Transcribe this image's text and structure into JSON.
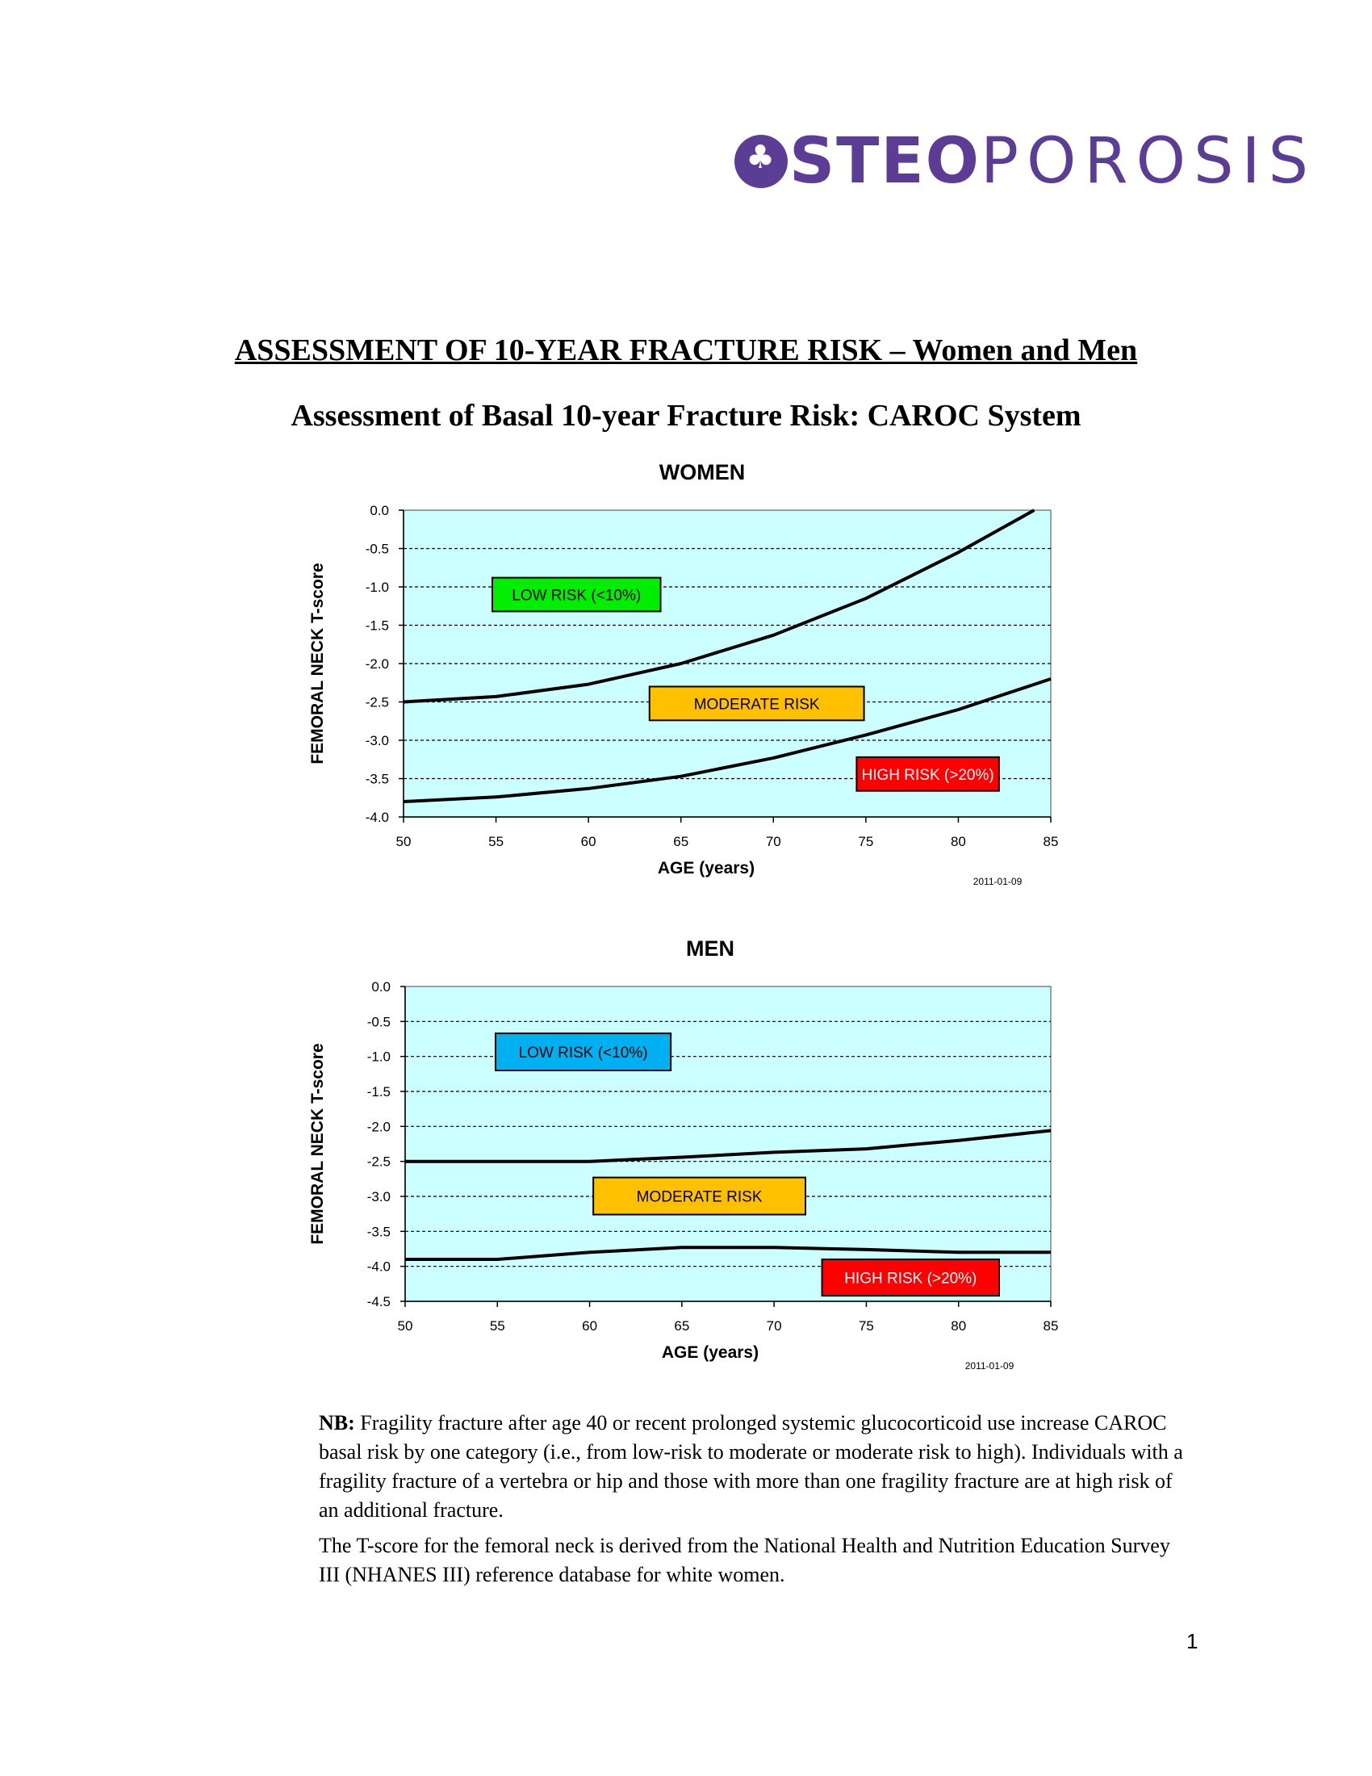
{
  "logo": {
    "text_bold": "STE",
    "text_mid": "O",
    "text_light": "POROSIS",
    "color": "#5b3d96"
  },
  "header": {
    "title": "ASSESSMENT OF 10-YEAR FRACTURE RISK – Women and Men",
    "subtitle": "Assessment of Basal 10-year Fracture Risk: CAROC System"
  },
  "chart_data": [
    {
      "type": "line",
      "title": "WOMEN",
      "xlabel": "AGE (years)",
      "ylabel": "FEMORAL NECK T-score",
      "xlim": [
        50,
        85
      ],
      "ylim": [
        -4.0,
        0.0
      ],
      "xticks": [
        50,
        55,
        60,
        65,
        70,
        75,
        80,
        85
      ],
      "yticks": [
        0.0,
        -0.5,
        -1.0,
        -1.5,
        -2.0,
        -2.5,
        -3.0,
        -3.5,
        -4.0
      ],
      "grid": true,
      "plot_bg": "#ccffff",
      "series": [
        {
          "x": [
            50,
            55,
            60,
            65,
            70,
            75,
            80,
            84.1
          ],
          "y": [
            -2.5,
            -2.43,
            -2.27,
            -2.0,
            -1.63,
            -1.15,
            -0.55,
            0.0
          ]
        },
        {
          "x": [
            50,
            55,
            60,
            65,
            70,
            75,
            80,
            85
          ],
          "y": [
            -3.8,
            -3.74,
            -3.63,
            -3.47,
            -3.23,
            -2.93,
            -2.6,
            -2.2
          ]
        }
      ],
      "annotations": [
        {
          "text": "LOW RISK (<10%)",
          "color": "#00ee00",
          "x": [
            54.8,
            63.9
          ],
          "y": [
            -0.88,
            -1.32
          ]
        },
        {
          "text": "MODERATE RISK",
          "color": "#ffc000",
          "x": [
            63.3,
            74.9
          ],
          "y": [
            -2.3,
            -2.74
          ]
        },
        {
          "text": "HIGH RISK (>20%)",
          "color": "#ff0000",
          "x": [
            74.5,
            82.2
          ],
          "y": [
            -3.22,
            -3.66
          ]
        }
      ],
      "date": "2011-01-09"
    },
    {
      "type": "line",
      "title": "MEN",
      "xlabel": "AGE (years)",
      "ylabel": "FEMORAL NECK T-score",
      "xlim": [
        50,
        85
      ],
      "ylim": [
        -4.5,
        0.0
      ],
      "xticks": [
        50,
        55,
        60,
        65,
        70,
        75,
        80,
        85
      ],
      "yticks": [
        0.0,
        -0.5,
        -1.0,
        -1.5,
        -2.0,
        -2.5,
        -3.0,
        -3.5,
        -4.0,
        -4.5
      ],
      "grid": true,
      "plot_bg": "#ccffff",
      "series": [
        {
          "x": [
            50,
            55,
            60,
            65,
            70,
            75,
            80,
            85
          ],
          "y": [
            -2.5,
            -2.5,
            -2.5,
            -2.44,
            -2.37,
            -2.32,
            -2.2,
            -2.06
          ]
        },
        {
          "x": [
            50,
            55,
            60,
            65,
            70,
            75,
            80,
            85
          ],
          "y": [
            -3.9,
            -3.9,
            -3.8,
            -3.73,
            -3.73,
            -3.76,
            -3.8,
            -3.8
          ]
        }
      ],
      "annotations": [
        {
          "text": "LOW RISK (<10%)",
          "color": "#00b0f0",
          "x": [
            54.9,
            64.4
          ],
          "y": [
            -0.67,
            -1.2
          ]
        },
        {
          "text": "MODERATE RISK",
          "color": "#ffc000",
          "x": [
            60.2,
            71.7
          ],
          "y": [
            -2.73,
            -3.26
          ]
        },
        {
          "text": "HIGH RISK (>20%)",
          "color": "#ff0000",
          "x": [
            72.6,
            82.2
          ],
          "y": [
            -3.9,
            -4.42
          ]
        }
      ],
      "date": "2011-01-09"
    }
  ],
  "notes": {
    "nb_label": "NB:",
    "nb_text": " Fragility fracture after age 40 or recent prolonged systemic glucocorticoid use increase CAROC basal risk by one category (i.e., from low-risk to moderate or moderate risk to high). Individuals with a fragility fracture of a vertebra or hip and those with more than one fragility fracture are at high risk of an additional fracture.",
    "tscore_text": "The T-score for the femoral neck is derived from the National Health and Nutrition Education Survey III (NHANES III) reference database for white women."
  },
  "page_number": "1"
}
